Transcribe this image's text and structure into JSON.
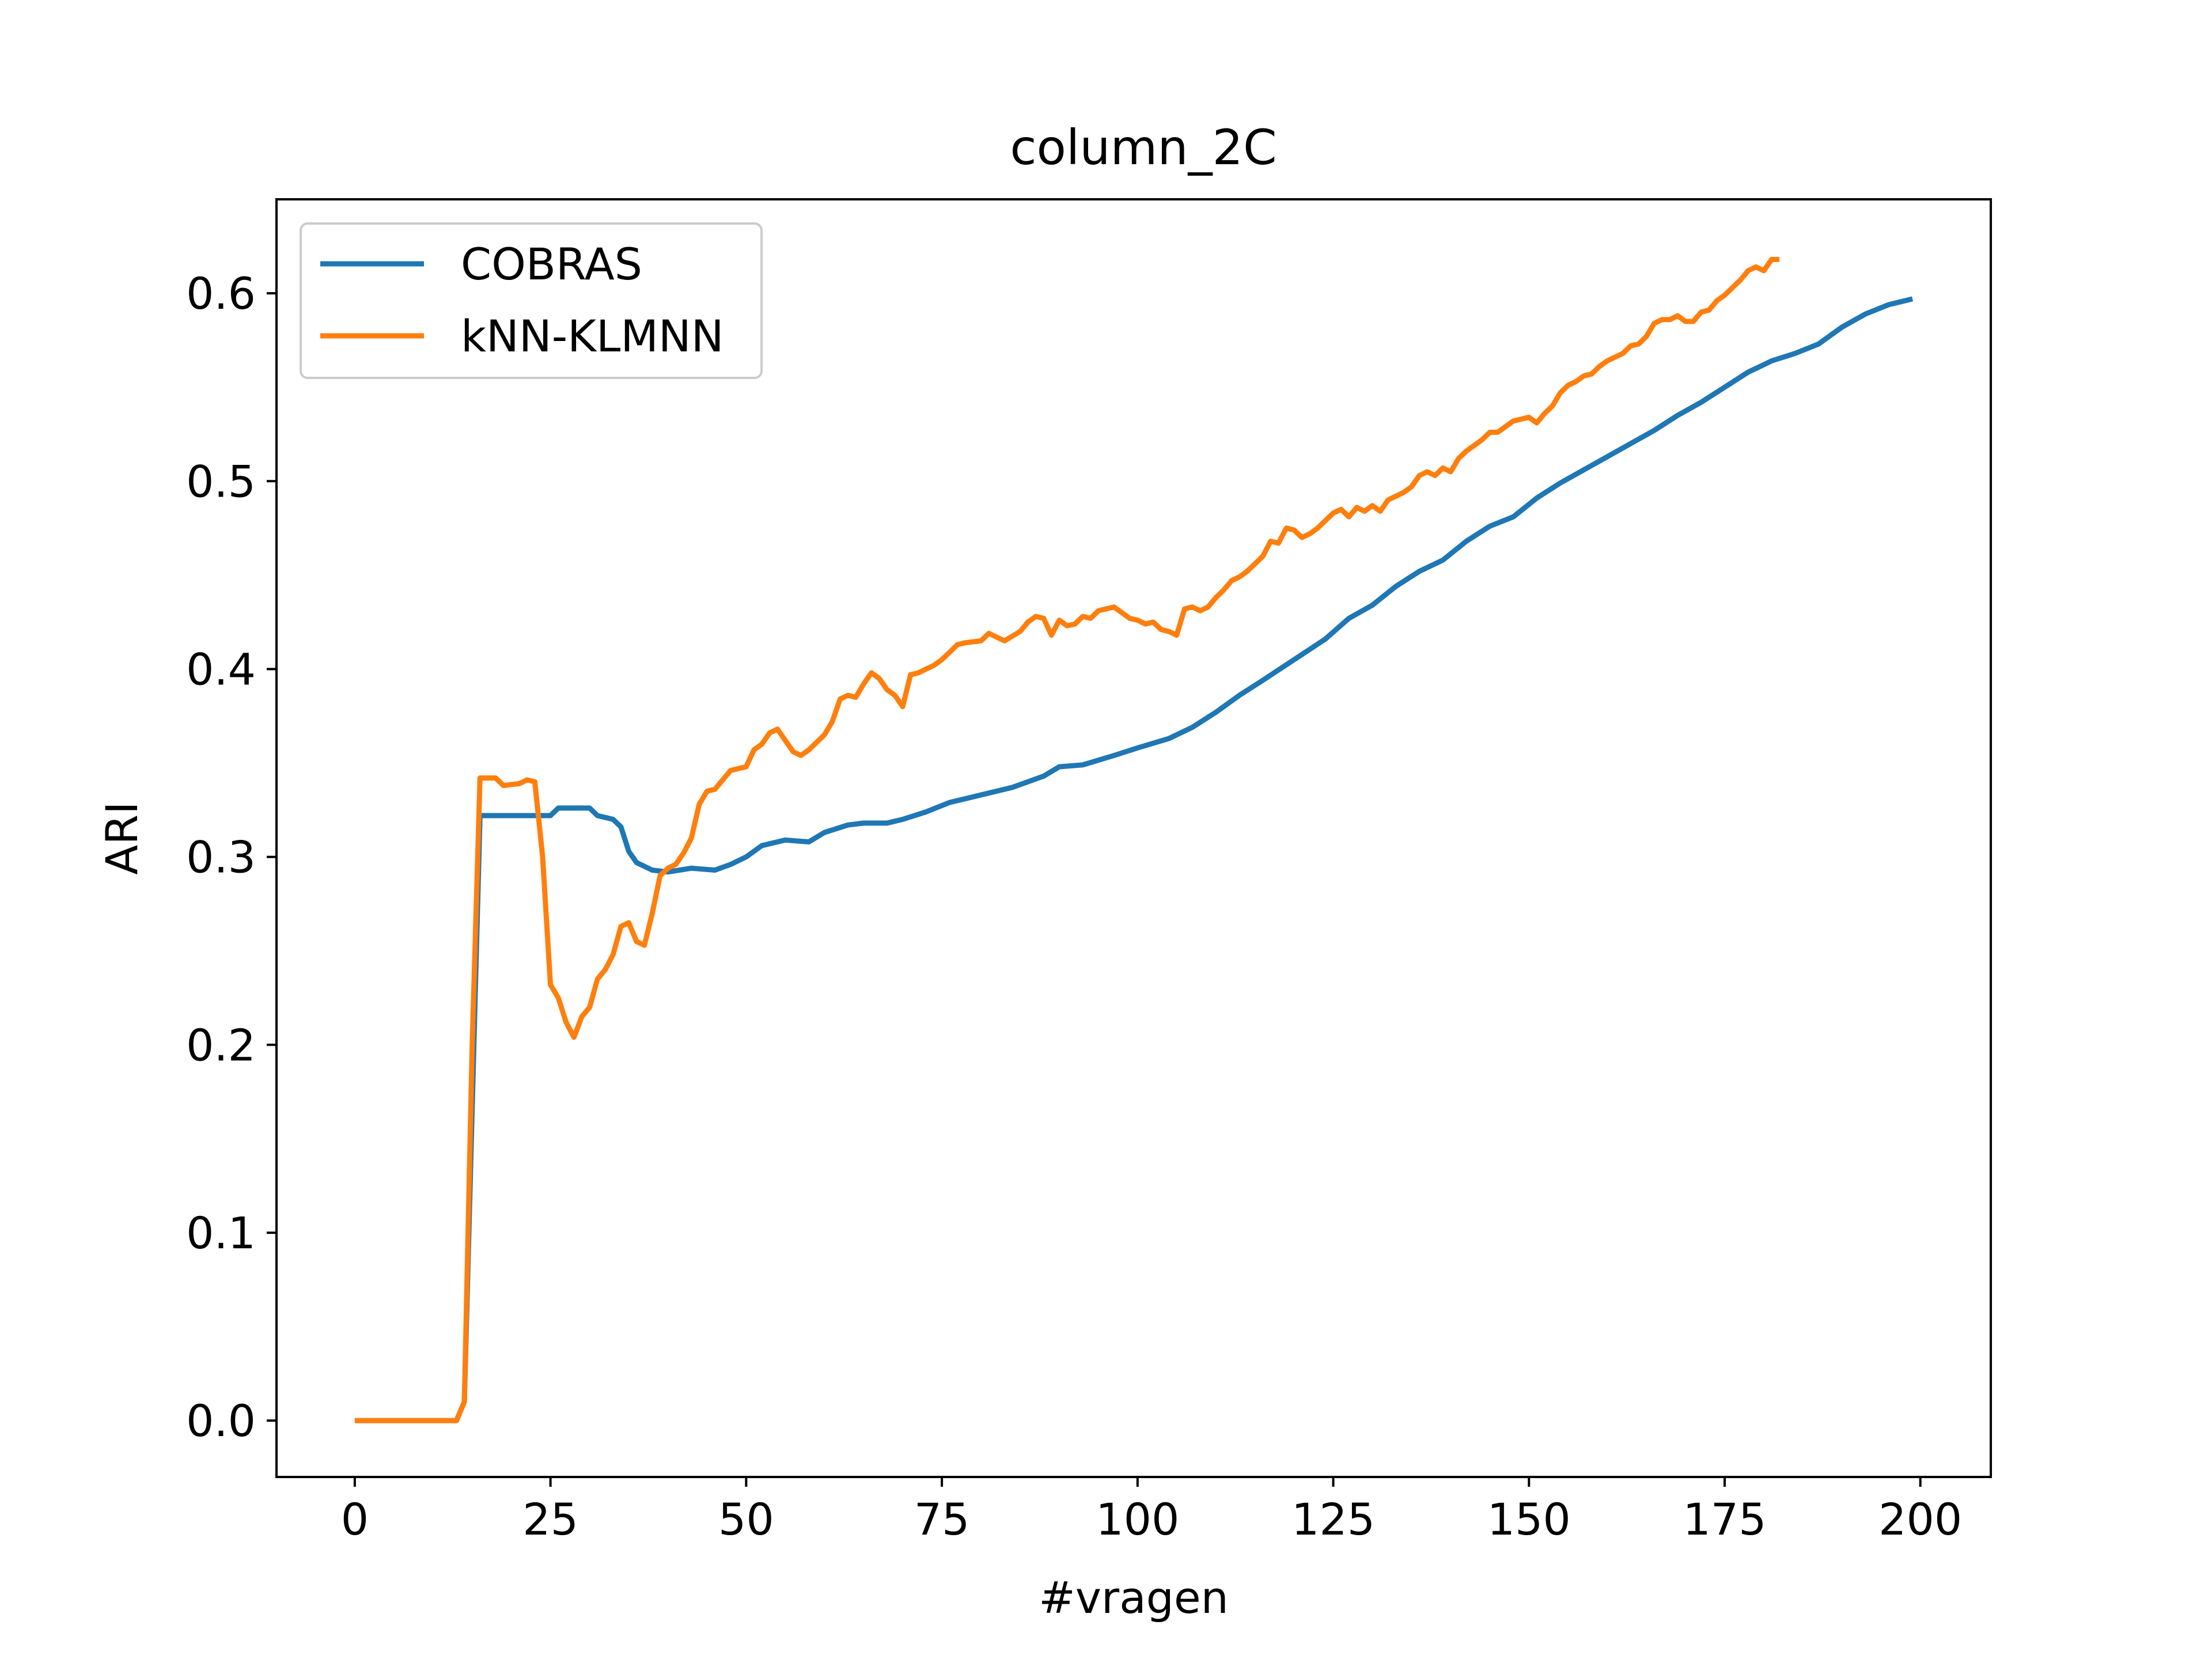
{
  "chart_data": {
    "type": "line",
    "title": "column_2C",
    "xlabel": "#vragen",
    "ylabel": "ARI",
    "xlim": [
      -10,
      209
    ],
    "ylim": [
      -0.03,
      0.65
    ],
    "xticks": [
      0,
      25,
      50,
      75,
      100,
      125,
      150,
      175,
      200
    ],
    "yticks": [
      0.0,
      0.1,
      0.2,
      0.3,
      0.4,
      0.5,
      0.6
    ],
    "ytick_labels": [
      "0.0",
      "0.1",
      "0.2",
      "0.3",
      "0.4",
      "0.5",
      "0.6"
    ],
    "grid": false,
    "legend_position": "upper-left",
    "series": [
      {
        "name": "COBRAS",
        "color": "#1f77b4",
        "points": [
          [
            0,
            0.0
          ],
          [
            13,
            0.0
          ],
          [
            14,
            0.01
          ],
          [
            16,
            0.322
          ],
          [
            20,
            0.322
          ],
          [
            25,
            0.322
          ],
          [
            26,
            0.326
          ],
          [
            30,
            0.326
          ],
          [
            31,
            0.322
          ],
          [
            33,
            0.32
          ],
          [
            34,
            0.316
          ],
          [
            35,
            0.303
          ],
          [
            36,
            0.297
          ],
          [
            38,
            0.293
          ],
          [
            40,
            0.292
          ],
          [
            43,
            0.294
          ],
          [
            46,
            0.293
          ],
          [
            48,
            0.296
          ],
          [
            50,
            0.3
          ],
          [
            52,
            0.306
          ],
          [
            55,
            0.309
          ],
          [
            58,
            0.308
          ],
          [
            60,
            0.313
          ],
          [
            63,
            0.317
          ],
          [
            65,
            0.318
          ],
          [
            68,
            0.318
          ],
          [
            70,
            0.32
          ],
          [
            73,
            0.324
          ],
          [
            76,
            0.329
          ],
          [
            80,
            0.333
          ],
          [
            84,
            0.337
          ],
          [
            88,
            0.343
          ],
          [
            90,
            0.348
          ],
          [
            93,
            0.349
          ],
          [
            97,
            0.354
          ],
          [
            100,
            0.358
          ],
          [
            104,
            0.363
          ],
          [
            107,
            0.369
          ],
          [
            110,
            0.377
          ],
          [
            113,
            0.386
          ],
          [
            116,
            0.394
          ],
          [
            120,
            0.405
          ],
          [
            124,
            0.416
          ],
          [
            127,
            0.427
          ],
          [
            130,
            0.434
          ],
          [
            133,
            0.444
          ],
          [
            136,
            0.452
          ],
          [
            139,
            0.458
          ],
          [
            142,
            0.468
          ],
          [
            145,
            0.476
          ],
          [
            148,
            0.481
          ],
          [
            151,
            0.491
          ],
          [
            154,
            0.499
          ],
          [
            157,
            0.506
          ],
          [
            160,
            0.513
          ],
          [
            163,
            0.52
          ],
          [
            166,
            0.527
          ],
          [
            169,
            0.535
          ],
          [
            172,
            0.542
          ],
          [
            175,
            0.55
          ],
          [
            178,
            0.558
          ],
          [
            181,
            0.564
          ],
          [
            184,
            0.568
          ],
          [
            187,
            0.573
          ],
          [
            190,
            0.582
          ],
          [
            193,
            0.589
          ],
          [
            196,
            0.594
          ],
          [
            199,
            0.597
          ]
        ]
      },
      {
        "name": "kNN-KLMNN",
        "color": "#ff7f0e",
        "points": [
          [
            0,
            0.0
          ],
          [
            13,
            0.0
          ],
          [
            14,
            0.01
          ],
          [
            15,
            0.2
          ],
          [
            16,
            0.342
          ],
          [
            18,
            0.342
          ],
          [
            19,
            0.338
          ],
          [
            21,
            0.339
          ],
          [
            22,
            0.341
          ],
          [
            23,
            0.34
          ],
          [
            24,
            0.3
          ],
          [
            25,
            0.232
          ],
          [
            26,
            0.225
          ],
          [
            27,
            0.212
          ],
          [
            28,
            0.204
          ],
          [
            29,
            0.215
          ],
          [
            30,
            0.22
          ],
          [
            31,
            0.235
          ],
          [
            32,
            0.24
          ],
          [
            33,
            0.248
          ],
          [
            34,
            0.263
          ],
          [
            35,
            0.265
          ],
          [
            36,
            0.255
          ],
          [
            37,
            0.253
          ],
          [
            38,
            0.27
          ],
          [
            39,
            0.29
          ],
          [
            40,
            0.294
          ],
          [
            41,
            0.296
          ],
          [
            42,
            0.302
          ],
          [
            43,
            0.31
          ],
          [
            44,
            0.328
          ],
          [
            45,
            0.335
          ],
          [
            46,
            0.336
          ],
          [
            47,
            0.341
          ],
          [
            48,
            0.346
          ],
          [
            49,
            0.347
          ],
          [
            50,
            0.348
          ],
          [
            51,
            0.357
          ],
          [
            52,
            0.36
          ],
          [
            53,
            0.366
          ],
          [
            54,
            0.368
          ],
          [
            55,
            0.362
          ],
          [
            56,
            0.356
          ],
          [
            57,
            0.354
          ],
          [
            58,
            0.357
          ],
          [
            60,
            0.365
          ],
          [
            61,
            0.372
          ],
          [
            62,
            0.384
          ],
          [
            63,
            0.386
          ],
          [
            64,
            0.385
          ],
          [
            65,
            0.392
          ],
          [
            66,
            0.398
          ],
          [
            67,
            0.395
          ],
          [
            68,
            0.389
          ],
          [
            69,
            0.386
          ],
          [
            70,
            0.38
          ],
          [
            71,
            0.397
          ],
          [
            72,
            0.398
          ],
          [
            73,
            0.4
          ],
          [
            74,
            0.402
          ],
          [
            75,
            0.405
          ],
          [
            76,
            0.409
          ],
          [
            77,
            0.413
          ],
          [
            78,
            0.414
          ],
          [
            80,
            0.415
          ],
          [
            81,
            0.419
          ],
          [
            82,
            0.417
          ],
          [
            83,
            0.415
          ],
          [
            85,
            0.42
          ],
          [
            86,
            0.425
          ],
          [
            87,
            0.428
          ],
          [
            88,
            0.427
          ],
          [
            89,
            0.418
          ],
          [
            90,
            0.426
          ],
          [
            91,
            0.423
          ],
          [
            92,
            0.424
          ],
          [
            93,
            0.428
          ],
          [
            94,
            0.427
          ],
          [
            95,
            0.431
          ],
          [
            97,
            0.433
          ],
          [
            98,
            0.43
          ],
          [
            99,
            0.427
          ],
          [
            100,
            0.426
          ],
          [
            101,
            0.424
          ],
          [
            102,
            0.425
          ],
          [
            103,
            0.421
          ],
          [
            104,
            0.42
          ],
          [
            105,
            0.418
          ],
          [
            106,
            0.432
          ],
          [
            107,
            0.433
          ],
          [
            108,
            0.431
          ],
          [
            109,
            0.433
          ],
          [
            110,
            0.438
          ],
          [
            111,
            0.442
          ],
          [
            112,
            0.447
          ],
          [
            113,
            0.449
          ],
          [
            114,
            0.452
          ],
          [
            115,
            0.456
          ],
          [
            116,
            0.46
          ],
          [
            117,
            0.468
          ],
          [
            118,
            0.467
          ],
          [
            119,
            0.475
          ],
          [
            120,
            0.474
          ],
          [
            121,
            0.47
          ],
          [
            122,
            0.472
          ],
          [
            123,
            0.475
          ],
          [
            124,
            0.479
          ],
          [
            125,
            0.483
          ],
          [
            126,
            0.485
          ],
          [
            127,
            0.481
          ],
          [
            128,
            0.486
          ],
          [
            129,
            0.484
          ],
          [
            130,
            0.487
          ],
          [
            131,
            0.484
          ],
          [
            132,
            0.49
          ],
          [
            133,
            0.492
          ],
          [
            134,
            0.494
          ],
          [
            135,
            0.497
          ],
          [
            136,
            0.503
          ],
          [
            137,
            0.505
          ],
          [
            138,
            0.503
          ],
          [
            139,
            0.507
          ],
          [
            140,
            0.505
          ],
          [
            141,
            0.512
          ],
          [
            142,
            0.516
          ],
          [
            143,
            0.519
          ],
          [
            144,
            0.522
          ],
          [
            145,
            0.526
          ],
          [
            146,
            0.526
          ],
          [
            147,
            0.529
          ],
          [
            148,
            0.532
          ],
          [
            149,
            0.533
          ],
          [
            150,
            0.534
          ],
          [
            151,
            0.531
          ],
          [
            152,
            0.536
          ],
          [
            153,
            0.54
          ],
          [
            154,
            0.547
          ],
          [
            155,
            0.551
          ],
          [
            156,
            0.553
          ],
          [
            157,
            0.556
          ],
          [
            158,
            0.557
          ],
          [
            159,
            0.561
          ],
          [
            160,
            0.564
          ],
          [
            161,
            0.566
          ],
          [
            162,
            0.568
          ],
          [
            163,
            0.572
          ],
          [
            164,
            0.573
          ],
          [
            165,
            0.577
          ],
          [
            166,
            0.584
          ],
          [
            167,
            0.586
          ],
          [
            168,
            0.586
          ],
          [
            169,
            0.588
          ],
          [
            170,
            0.585
          ],
          [
            171,
            0.585
          ],
          [
            172,
            0.59
          ],
          [
            173,
            0.591
          ],
          [
            174,
            0.596
          ],
          [
            175,
            0.599
          ],
          [
            176,
            0.603
          ],
          [
            177,
            0.607
          ],
          [
            178,
            0.612
          ],
          [
            179,
            0.614
          ],
          [
            180,
            0.612
          ],
          [
            181,
            0.618
          ],
          [
            182,
            0.618
          ]
        ]
      }
    ]
  }
}
